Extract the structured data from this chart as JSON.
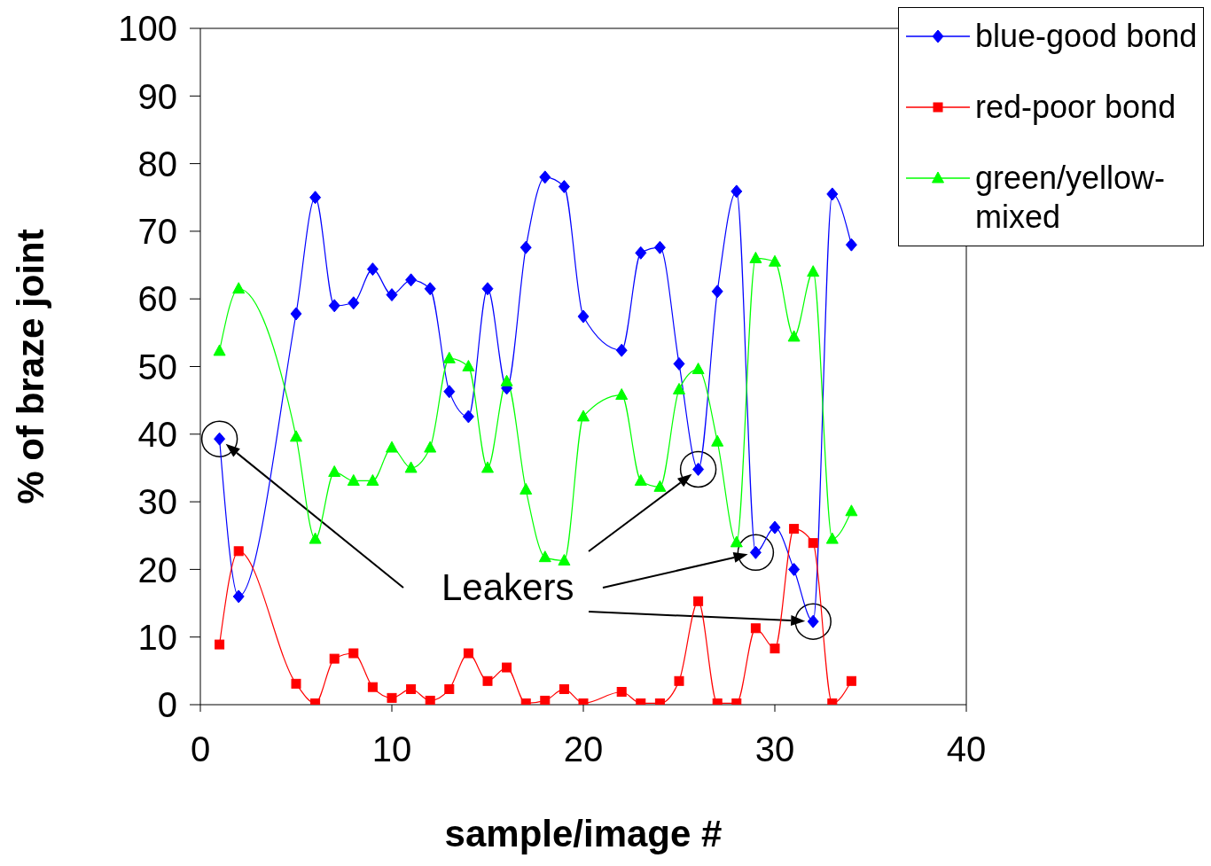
{
  "chart_data": {
    "type": "line",
    "xlabel": "sample/image #",
    "ylabel": "% of braze joint",
    "xlim": [
      0,
      40
    ],
    "xticks": [
      0,
      10,
      20,
      30,
      40
    ],
    "ylim": [
      0,
      100
    ],
    "yticks": [
      0,
      10,
      20,
      30,
      40,
      50,
      60,
      70,
      80,
      90,
      100
    ],
    "legend": "top right",
    "line_style": "solid",
    "x": [
      1,
      2,
      5,
      6,
      7,
      8,
      9,
      10,
      11,
      12,
      13,
      14,
      15,
      16,
      17,
      18,
      19,
      20,
      22,
      23,
      24,
      25,
      26,
      27,
      28,
      29,
      30,
      31,
      32,
      33,
      34
    ],
    "series": [
      {
        "name": "blue-good bond",
        "color": "#0000ff",
        "marker": "diamond",
        "values": [
          39.3,
          16,
          57.8,
          75,
          59,
          59.4,
          64.4,
          60.6,
          62.8,
          61.5,
          46.3,
          42.6,
          61.5,
          46.8,
          67.6,
          78,
          76.6,
          57.4,
          52.4,
          66.8,
          67.6,
          50.4,
          34.8,
          61.1,
          75.9,
          22.5,
          26.2,
          20,
          12.3,
          75.5,
          68
        ]
      },
      {
        "name": "red-poor bond",
        "color": "#ff0000",
        "marker": "square",
        "values": [
          8.9,
          22.7,
          3.1,
          0.2,
          6.8,
          7.6,
          2.6,
          1,
          2.3,
          0.6,
          2.3,
          7.6,
          3.5,
          5.5,
          0.2,
          0.6,
          2.3,
          0.2,
          1.9,
          0.2,
          0.2,
          3.5,
          15.3,
          0.2,
          0.2,
          11.3,
          8.3,
          26,
          23.9,
          0.2,
          3.5
        ]
      },
      {
        "name": "green/yellow-mixed",
        "color": "#00ff00",
        "marker": "triangle",
        "values": [
          52.3,
          61.5,
          39.6,
          24.5,
          34.4,
          33.1,
          33.1,
          38,
          35,
          38,
          51.2,
          50,
          35,
          47.8,
          31.8,
          21.8,
          21.3,
          42.6,
          45.8,
          33.1,
          32.2,
          46.6,
          49.6,
          38.9,
          24,
          66,
          65.5,
          54.4,
          64,
          24.5,
          28.6
        ]
      }
    ],
    "annotations": [
      "Leakers"
    ]
  }
}
